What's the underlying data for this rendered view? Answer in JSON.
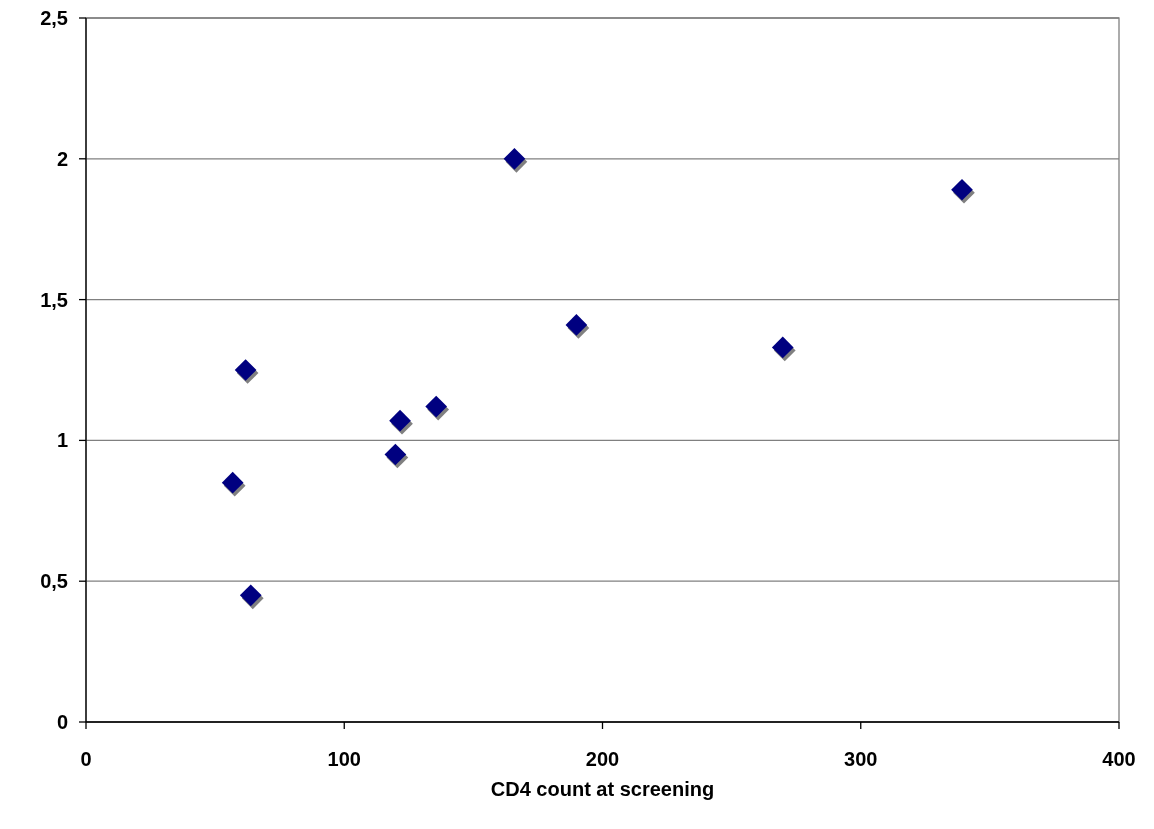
{
  "chart_data": {
    "type": "scatter",
    "xlabel": "CD4 count at screening",
    "x": [
      56.8,
      61.8,
      63.8,
      119.8,
      121.6,
      135.6,
      165.9,
      189.9,
      269.8,
      339.2
    ],
    "values": [
      0.85,
      1.25,
      0.45,
      0.95,
      1.07,
      1.12,
      2.0,
      1.41,
      1.33,
      1.89
    ],
    "color": "#000080",
    "marker": "diamond",
    "xlim": [
      0,
      400
    ],
    "xticks": [
      0,
      100,
      200,
      300,
      400
    ],
    "ylim": [
      0,
      2.5
    ],
    "yticks": [
      0,
      {
        "value": 0.5,
        "label": "0,5"
      },
      1,
      {
        "value": 1.5,
        "label": "1,5"
      },
      2,
      {
        "value": 2.5,
        "label": "2,5"
      }
    ],
    "grid": "y"
  }
}
